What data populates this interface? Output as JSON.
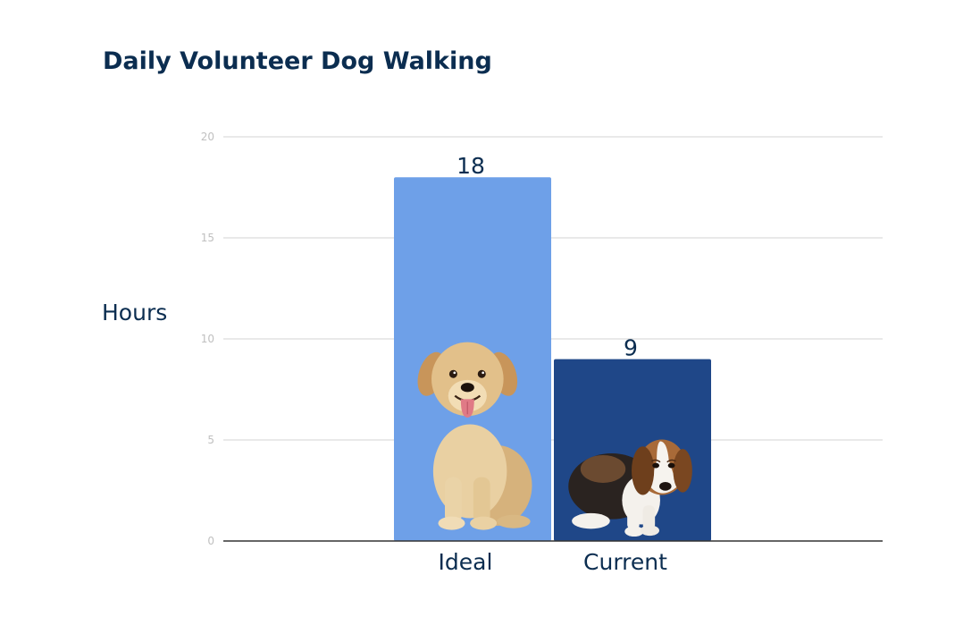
{
  "chart_data": {
    "type": "bar",
    "title": "Daily Volunteer Dog Walking",
    "xlabel": "",
    "ylabel": "Hours",
    "categories": [
      "Ideal",
      "Current"
    ],
    "values": [
      18,
      9
    ],
    "data_labels": [
      "18",
      "9"
    ],
    "ylim": [
      0,
      20
    ],
    "yticks": [
      0,
      5,
      10,
      15,
      20
    ],
    "ytick_labels": [
      "0",
      "5",
      "10",
      "15",
      "20"
    ],
    "grid": true,
    "legend": "none",
    "bar_icons": [
      "happy-puppy-icon",
      "sad-beagle-icon"
    ]
  },
  "colors": {
    "title": "#0b2d50",
    "text": "#0b2d50",
    "tick": "#c0c0c0",
    "grid": "#dcdcdc",
    "baseline": "#333333",
    "bars": [
      "#6ea0e8",
      "#1f4788"
    ]
  }
}
